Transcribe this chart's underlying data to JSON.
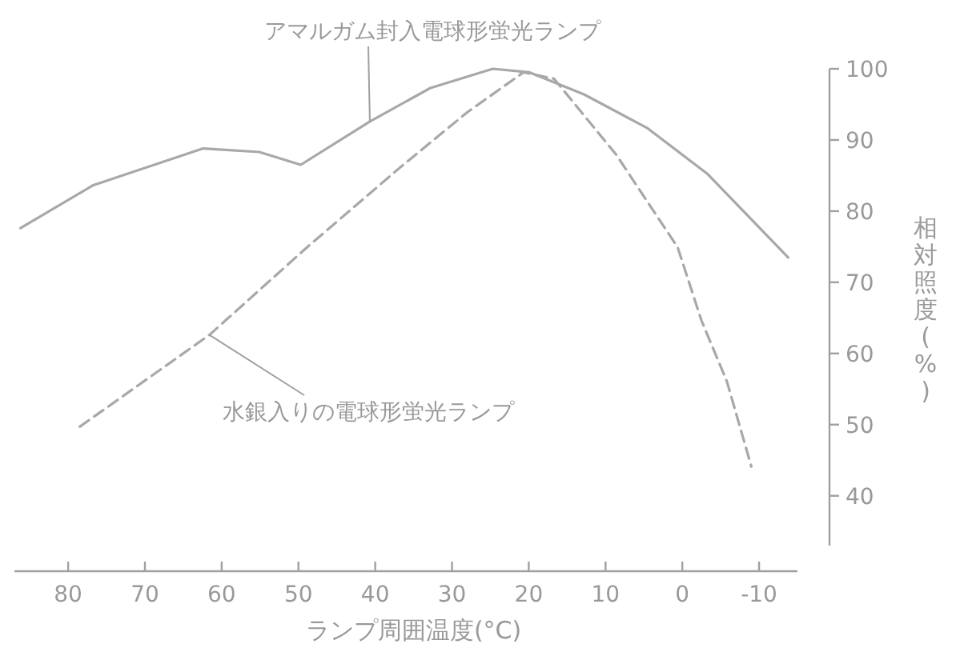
{
  "chart_data": {
    "type": "line",
    "xlabel": "ランプ周囲温度(°C)",
    "ylabel": "相対照度(%)",
    "xlim": [
      87,
      -15
    ],
    "ylim": [
      33,
      100
    ],
    "xticks": [
      80,
      70,
      60,
      50,
      40,
      30,
      20,
      10,
      0,
      -10
    ],
    "yticks": [
      40,
      50,
      60,
      70,
      80,
      90,
      100
    ],
    "series": [
      {
        "name": "アマルガム封入電球形蛍光ランプ",
        "color": "#a8a8a8",
        "line_style": "solid",
        "x": [
          86.2,
          76.8,
          62.4,
          55.1,
          49.7,
          40.7,
          32.8,
          24.7,
          19.9,
          12.8,
          4.6,
          -3.3,
          -13.8
        ],
        "values": [
          77.6,
          83.6,
          88.8,
          88.3,
          86.5,
          92.6,
          97.3,
          100.0,
          99.5,
          96.4,
          91.7,
          85.2,
          73.5
        ]
      },
      {
        "name": "水銀入りの電球形蛍光ランプ",
        "color": "#a8a8a8",
        "line_style": "dashed",
        "x": [
          78.5,
          61.6,
          48.9,
          36.8,
          28.0,
          20.7,
          16.7,
          8.6,
          0.6,
          -2.5,
          -5.8,
          -9.0
        ],
        "values": [
          49.7,
          62.6,
          74.9,
          86.1,
          93.9,
          99.5,
          98.6,
          87.9,
          74.9,
          64.6,
          56.1,
          44.1
        ]
      }
    ]
  }
}
